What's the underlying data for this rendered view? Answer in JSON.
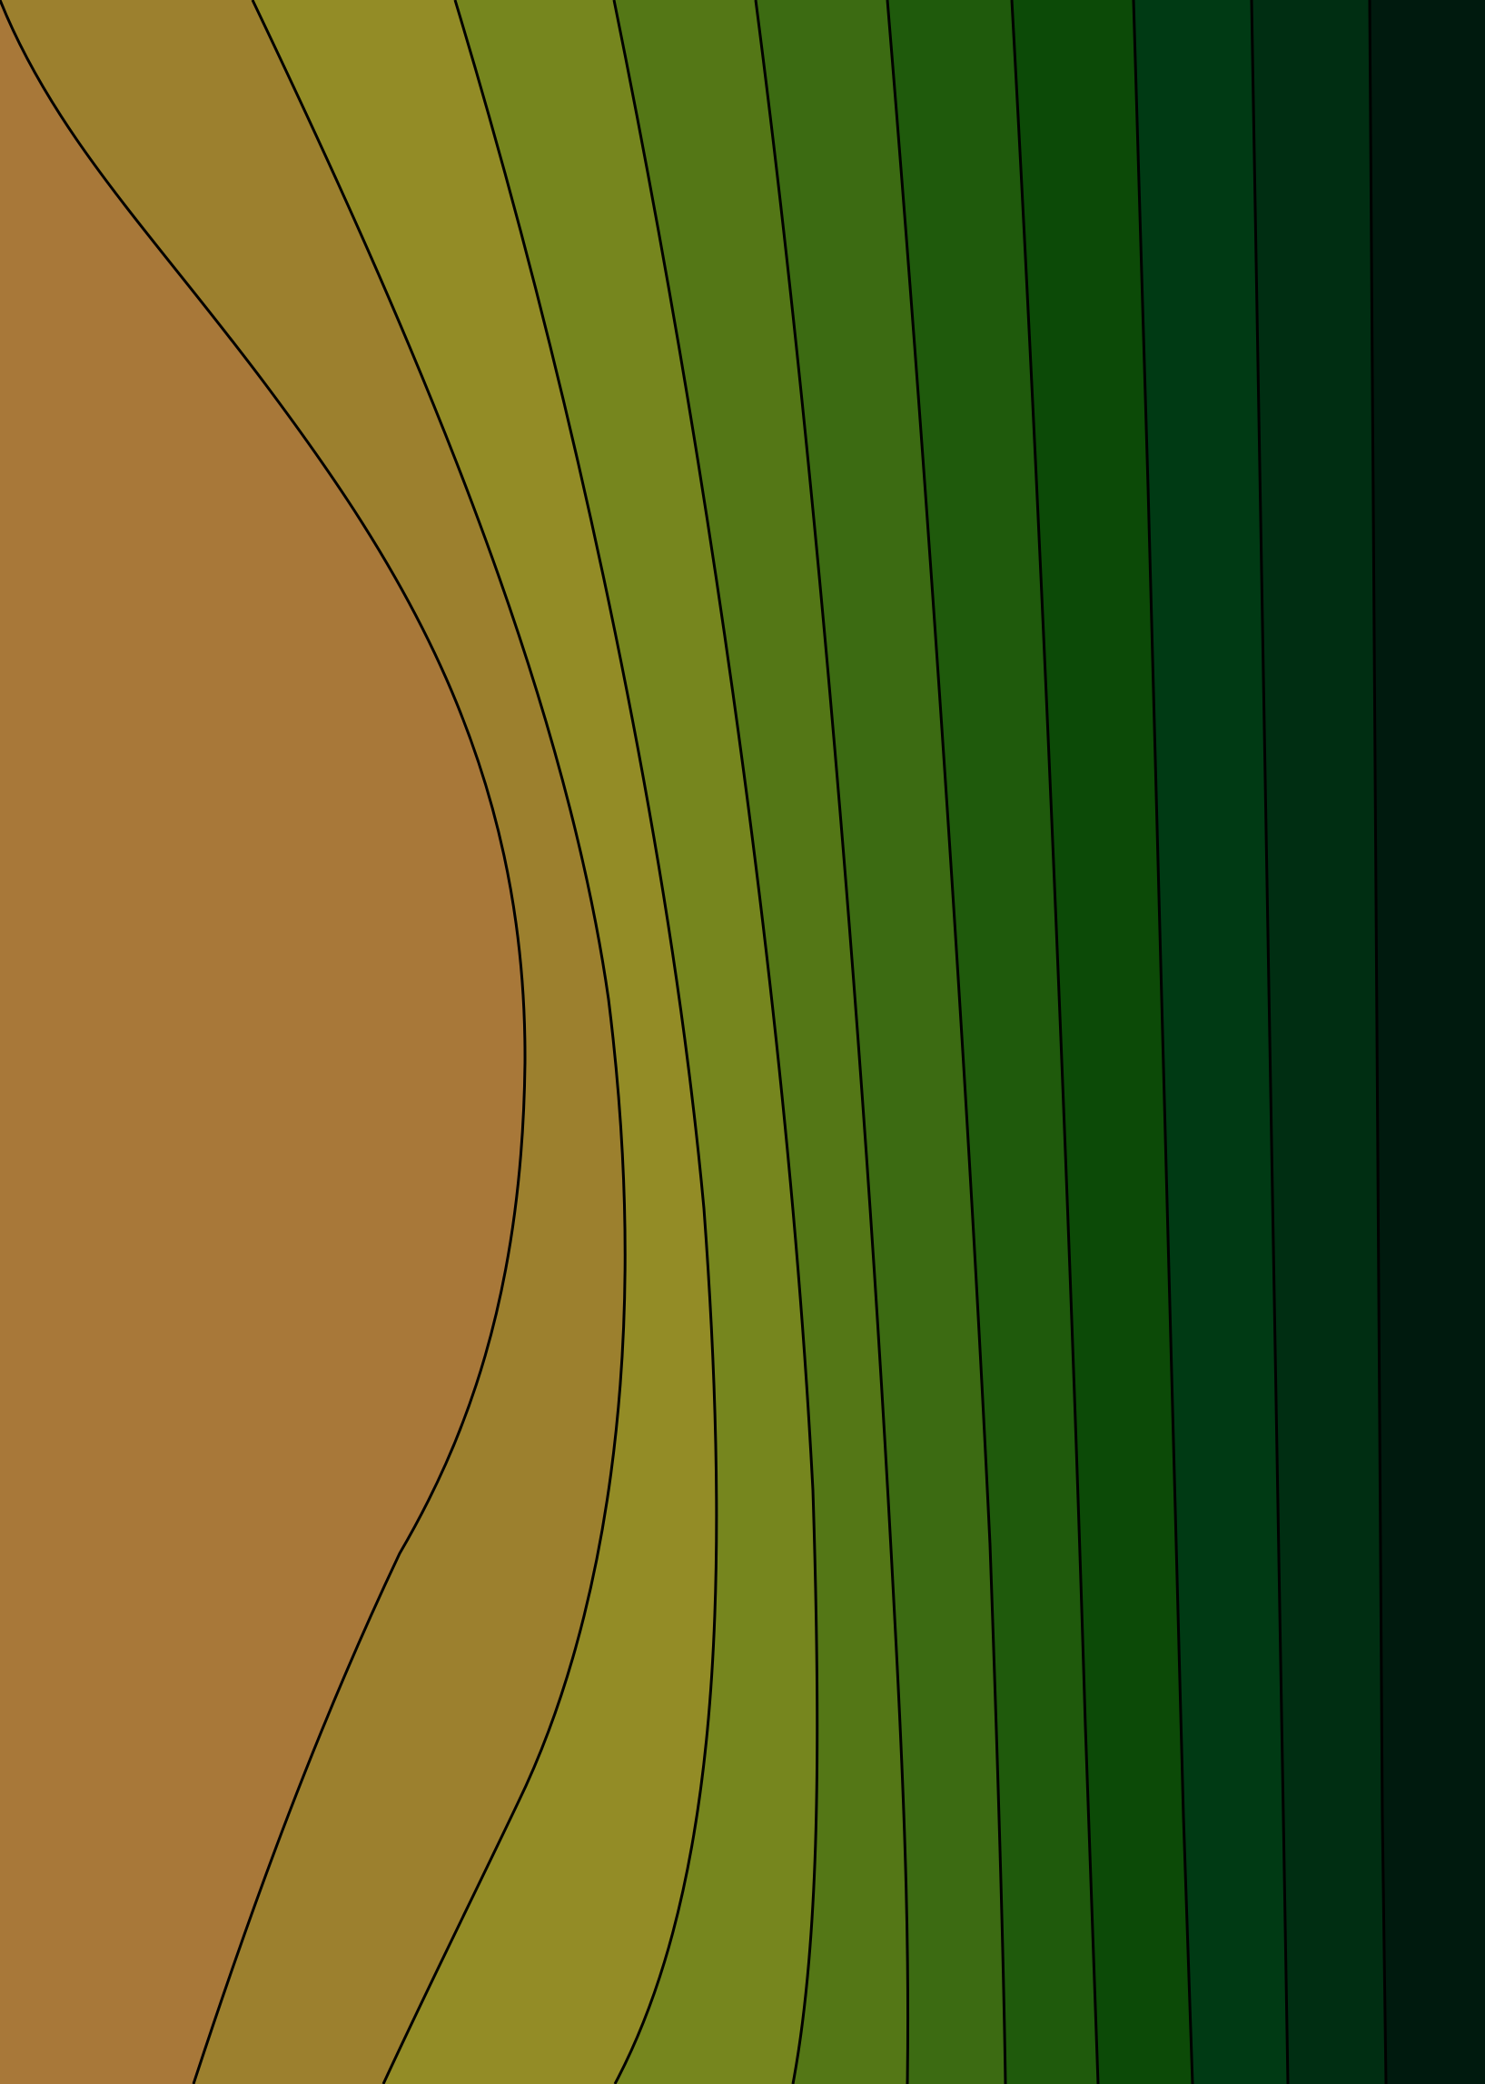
{
  "artwork": {
    "style": "layered contour bands",
    "band_colors": [
      "#a87839",
      "#9c802e",
      "#938c26",
      "#76861e",
      "#547716",
      "#3c6b12",
      "#1f5a0c",
      "#0c4a07",
      "#003a14",
      "#002e12",
      "#001a0e"
    ],
    "contour_line_color": "#000000",
    "band_count": 11,
    "contour_count": 10
  }
}
